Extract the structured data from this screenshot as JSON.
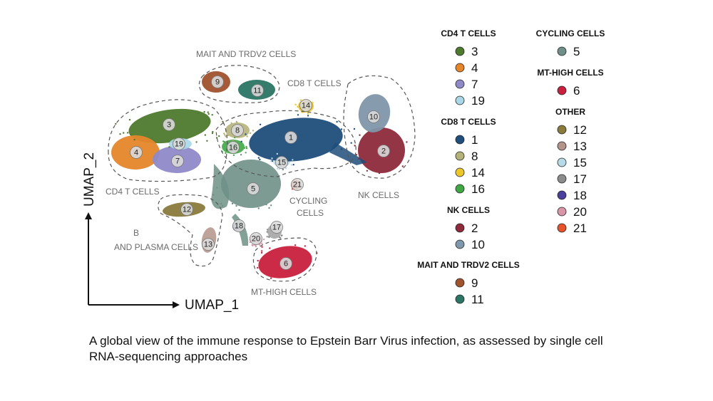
{
  "chart_data": {
    "type": "scatter",
    "xlabel": "UMAP_1",
    "ylabel": "UMAP_2",
    "caption": "A global view of the immune response to Epstein Barr Virus infection, as assessed by single cell RNA-sequencing approaches",
    "group_labels": [
      {
        "id": "mait",
        "text": "MAIT AND TRDV2 CELLS"
      },
      {
        "id": "cd8",
        "text": "CD8 T CELLS"
      },
      {
        "id": "cd4",
        "text": "CD4 T CELLS"
      },
      {
        "id": "nk",
        "text": "NK CELLS"
      },
      {
        "id": "cycling",
        "text": "CYCLING CELLS"
      },
      {
        "id": "bplasma",
        "text": "B AND PLASMA CELLS"
      },
      {
        "id": "mthigh",
        "text": "MT-HIGH CELLS"
      }
    ],
    "clusters": [
      {
        "id": "1",
        "color": "#1f4e7a"
      },
      {
        "id": "2",
        "color": "#8e2a3b"
      },
      {
        "id": "3",
        "color": "#4e7a2e"
      },
      {
        "id": "4",
        "color": "#e5862a"
      },
      {
        "id": "5",
        "color": "#6f9086"
      },
      {
        "id": "6",
        "color": "#c8203d"
      },
      {
        "id": "7",
        "color": "#8f89c8"
      },
      {
        "id": "8",
        "color": "#b5b279"
      },
      {
        "id": "9",
        "color": "#a0522d"
      },
      {
        "id": "10",
        "color": "#7f97aa"
      },
      {
        "id": "11",
        "color": "#2b7565"
      },
      {
        "id": "12",
        "color": "#8a7a3c"
      },
      {
        "id": "13",
        "color": "#b3938a"
      },
      {
        "id": "14",
        "color": "#ecc72a"
      },
      {
        "id": "15",
        "color": "#b7dbe6"
      },
      {
        "id": "16",
        "color": "#3fa844"
      },
      {
        "id": "17",
        "color": "#8c8c8c"
      },
      {
        "id": "18",
        "color": "#4a3f9a"
      },
      {
        "id": "19",
        "color": "#a9d7e8"
      },
      {
        "id": "20",
        "color": "#d896a8"
      },
      {
        "id": "21",
        "color": "#e8522a"
      }
    ],
    "legend": [
      {
        "group": "CD4 T CELLS",
        "items": [
          "3",
          "4",
          "7",
          "19"
        ]
      },
      {
        "group": "CD8 T CELLS",
        "items": [
          "1",
          "8",
          "14",
          "16"
        ]
      },
      {
        "group": "NK CELLS",
        "items": [
          "2",
          "10"
        ]
      },
      {
        "group": "MAIT AND TRDV2 CELLS",
        "items": [
          "9",
          "11"
        ]
      },
      {
        "group": "CYCLING CELLS",
        "items": [
          "5"
        ]
      },
      {
        "group": "MT-HIGH CELLS",
        "items": [
          "6"
        ]
      },
      {
        "group": "OTHER",
        "items": [
          "12",
          "13",
          "15",
          "17",
          "18",
          "20",
          "21"
        ]
      }
    ]
  }
}
